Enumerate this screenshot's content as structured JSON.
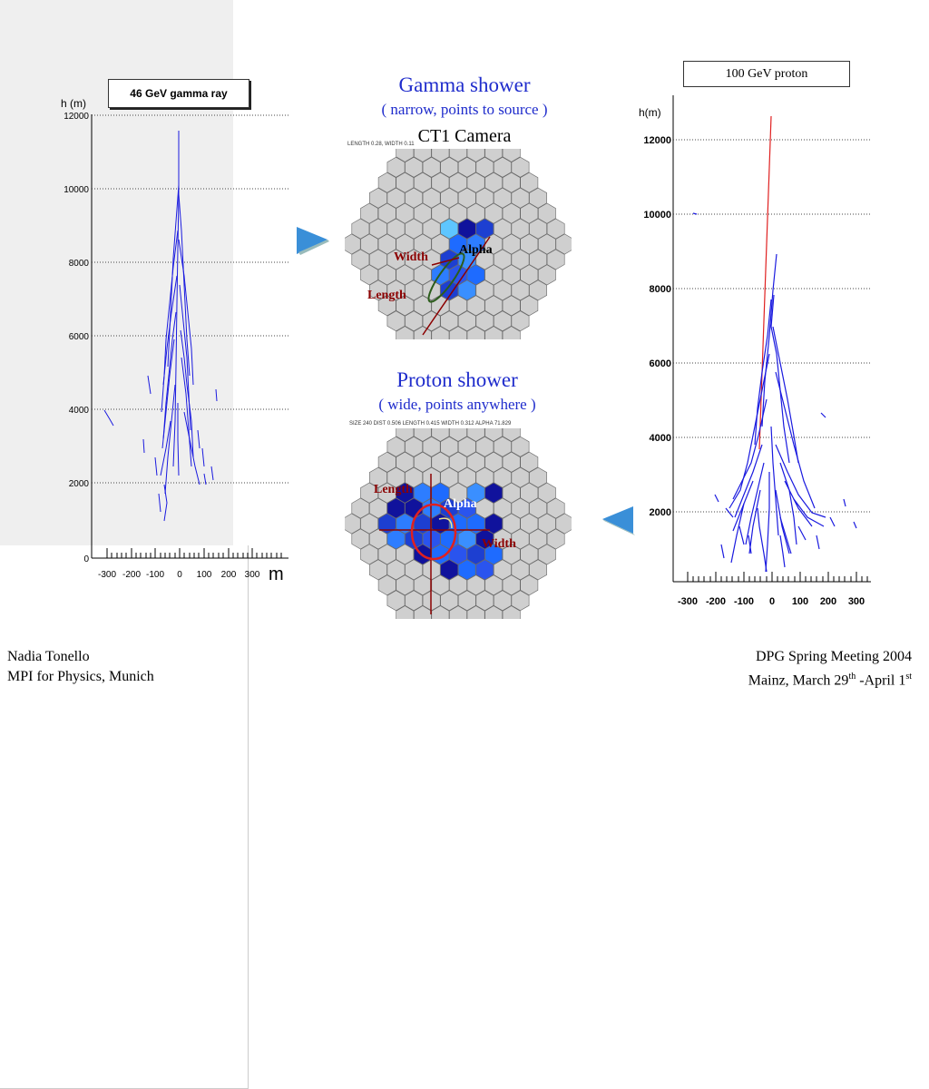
{
  "left_plot": {
    "title": "46 GeV gamma ray",
    "y_axis_label": "h (m)",
    "x_axis_label": "m",
    "y_ticks": [
      "0",
      "2000",
      "4000",
      "6000",
      "8000",
      "10000",
      "12000"
    ],
    "x_ticks": [
      "-300",
      "-200",
      "-100",
      "0",
      "100",
      "200",
      "300"
    ]
  },
  "right_plot": {
    "title": "100  GeV proton",
    "y_axis_label": "h(m)",
    "y_ticks": [
      "2000",
      "4000",
      "6000",
      "8000",
      "10000",
      "12000"
    ],
    "x_ticks": [
      "-300",
      "-200",
      "-100",
      "0",
      "100",
      "200",
      "300"
    ]
  },
  "gamma": {
    "heading": "Gamma shower",
    "subheading": "( narrow, points to source )",
    "camera_label": "CT1 Camera",
    "header_text": "LENGTH 0.28, WIDTH 0.11",
    "labels": {
      "width": "Width",
      "alpha": "Alpha",
      "length": "Length"
    }
  },
  "proton": {
    "heading": "Proton shower",
    "subheading": "( wide, points anywhere )",
    "header_text": "SIZE 240  DIST  0.506 LENGTH  0.415  WIDTH  0.312  ALPHA 71.829",
    "labels": {
      "length": "Length",
      "alpha": "Alpha",
      "width": "Width"
    }
  },
  "footer": {
    "author": "Nadia Tonello",
    "institute": "MPI for Physics, Munich",
    "event": "DPG Spring Meeting 2004",
    "date_prefix": "Mainz, March 29",
    "date_sup1": "th",
    "date_mid": " -April 1",
    "date_sup2": "st"
  },
  "colors": {
    "heading_blue": "#1f2ccc",
    "track_blue": "#1a1adf",
    "proton_red": "#e02020",
    "arrow_blue": "#3a8fd8",
    "label_darkred": "#8b0000"
  },
  "icons": [
    "arrow-right-icon",
    "arrow-left-icon"
  ]
}
